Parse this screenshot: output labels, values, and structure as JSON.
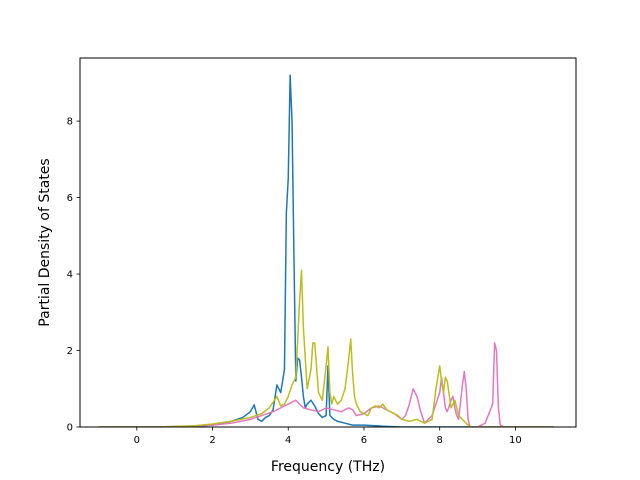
{
  "chart_data": {
    "type": "line",
    "title": "",
    "xlabel": "Frequency (THz)",
    "ylabel": "Partial Density of States",
    "xlim": [
      -1.5,
      11.6
    ],
    "ylim": [
      0,
      9.65
    ],
    "xticks": [
      0,
      2,
      4,
      6,
      8,
      10
    ],
    "yticks": [
      0,
      2,
      4,
      6,
      8
    ],
    "xtick_labels": [
      "0",
      "2",
      "4",
      "6",
      "8",
      "10"
    ],
    "ytick_labels": [
      "0",
      "2",
      "4",
      "6",
      "8"
    ],
    "grid": false,
    "legend": false,
    "series": [
      {
        "color": "#1f77b4",
        "x": [
          -1,
          0.5,
          1.5,
          2.0,
          2.5,
          2.8,
          3.0,
          3.1,
          3.2,
          3.3,
          3.4,
          3.5,
          3.6,
          3.7,
          3.8,
          3.9,
          3.95,
          4.0,
          4.05,
          4.1,
          4.15,
          4.2,
          4.25,
          4.3,
          4.35,
          4.4,
          4.45,
          4.5,
          4.6,
          4.7,
          4.8,
          4.9,
          5.0,
          5.05,
          5.1,
          5.2,
          5.3,
          5.5,
          5.7,
          6.0,
          6.5,
          7.0,
          11
        ],
        "y": [
          0,
          0,
          0.02,
          0.05,
          0.15,
          0.25,
          0.4,
          0.58,
          0.2,
          0.15,
          0.25,
          0.3,
          0.45,
          1.1,
          0.9,
          1.5,
          5.6,
          6.5,
          9.2,
          8.0,
          4.5,
          1.2,
          1.8,
          1.75,
          1.3,
          0.8,
          0.5,
          0.6,
          0.7,
          0.55,
          0.35,
          0.25,
          0.3,
          1.6,
          0.3,
          0.2,
          0.15,
          0.1,
          0.05,
          0.05,
          0.02,
          0,
          0
        ]
      },
      {
        "color": "#e377c2",
        "x": [
          -1,
          0.5,
          1.5,
          2.0,
          2.5,
          3.0,
          3.3,
          3.6,
          3.8,
          4.0,
          4.2,
          4.4,
          4.6,
          4.8,
          5.0,
          5.2,
          5.4,
          5.6,
          5.7,
          5.8,
          6.0,
          6.2,
          6.4,
          6.6,
          6.8,
          7.0,
          7.1,
          7.2,
          7.3,
          7.4,
          7.5,
          7.6,
          7.8,
          8.0,
          8.05,
          8.1,
          8.15,
          8.2,
          8.3,
          8.35,
          8.4,
          8.45,
          8.5,
          8.6,
          8.65,
          8.7,
          8.75,
          8.8,
          9.0,
          9.2,
          9.4,
          9.45,
          9.5,
          9.55,
          9.6,
          9.7,
          11
        ],
        "y": [
          0,
          0,
          0.03,
          0.05,
          0.1,
          0.2,
          0.3,
          0.4,
          0.5,
          0.6,
          0.7,
          0.5,
          0.45,
          0.4,
          0.5,
          0.45,
          0.4,
          0.5,
          0.45,
          0.3,
          0.35,
          0.5,
          0.55,
          0.45,
          0.35,
          0.2,
          0.3,
          0.6,
          1.0,
          0.8,
          0.4,
          0.1,
          0.3,
          0.9,
          1.3,
          0.9,
          0.5,
          0.4,
          0.7,
          0.8,
          0.5,
          0.3,
          0.2,
          1.1,
          1.45,
          1.0,
          0.2,
          0,
          0,
          0.1,
          0.6,
          2.2,
          2.0,
          0.5,
          0.05,
          0,
          0
        ]
      },
      {
        "color": "#bcbd22",
        "x": [
          -1,
          0.5,
          1.5,
          2.0,
          2.5,
          3.0,
          3.3,
          3.5,
          3.7,
          3.8,
          3.9,
          4.0,
          4.1,
          4.2,
          4.25,
          4.3,
          4.35,
          4.4,
          4.5,
          4.6,
          4.65,
          4.7,
          4.8,
          4.9,
          5.0,
          5.05,
          5.1,
          5.15,
          5.2,
          5.3,
          5.4,
          5.5,
          5.6,
          5.65,
          5.7,
          5.75,
          5.8,
          5.9,
          6.0,
          6.1,
          6.2,
          6.3,
          6.4,
          6.5,
          6.6,
          6.7,
          6.8,
          6.9,
          7.0,
          7.2,
          7.4,
          7.6,
          7.8,
          7.9,
          8.0,
          8.05,
          8.1,
          8.15,
          8.2,
          8.3,
          8.4,
          8.5,
          8.6,
          8.7,
          8.8,
          9.0,
          11
        ],
        "y": [
          0,
          0,
          0.03,
          0.08,
          0.15,
          0.25,
          0.35,
          0.5,
          0.8,
          0.55,
          0.6,
          0.8,
          1.1,
          1.3,
          2.3,
          3.3,
          4.1,
          2.6,
          1.0,
          1.5,
          2.2,
          2.2,
          0.9,
          0.7,
          1.6,
          2.1,
          0.9,
          0.6,
          0.8,
          0.6,
          0.7,
          1.0,
          1.8,
          2.3,
          1.4,
          0.8,
          0.6,
          0.4,
          0.35,
          0.3,
          0.5,
          0.55,
          0.5,
          0.6,
          0.45,
          0.4,
          0.35,
          0.3,
          0.2,
          0.15,
          0.2,
          0.1,
          0.2,
          1.0,
          1.6,
          1.2,
          0.9,
          1.3,
          1.2,
          0.5,
          0.7,
          0.3,
          0.2,
          0.1,
          0,
          0,
          0
        ]
      }
    ]
  }
}
